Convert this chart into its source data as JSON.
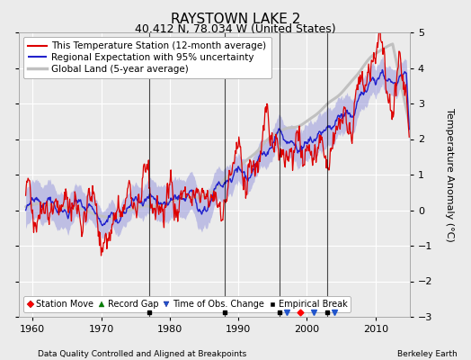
{
  "title": "RAYSTOWN LAKE 2",
  "subtitle": "40.412 N, 78.034 W (United States)",
  "ylabel": "Temperature Anomaly (°C)",
  "xlabel_left": "Data Quality Controlled and Aligned at Breakpoints",
  "xlabel_right": "Berkeley Earth",
  "ylim": [
    -3,
    5
  ],
  "xlim": [
    1958,
    2015
  ],
  "xticks": [
    1960,
    1970,
    1980,
    1990,
    2000,
    2010
  ],
  "yticks": [
    -3,
    -2,
    -1,
    0,
    1,
    2,
    3,
    4,
    5
  ],
  "bg_color": "#ebebeb",
  "plot_bg_color": "#ebebeb",
  "grid_color": "#ffffff",
  "station_color": "#dd0000",
  "regional_color": "#2222cc",
  "regional_fill_color": "#9999dd",
  "global_color": "#c0c0c0",
  "title_fontsize": 11,
  "subtitle_fontsize": 9,
  "legend_fontsize": 7.5,
  "marker_events": {
    "empirical_breaks": [
      1977,
      1988,
      1996,
      2003
    ],
    "time_obs_changes": [
      1997,
      2001,
      2004
    ],
    "station_moves": [
      1999
    ],
    "record_gaps": []
  }
}
